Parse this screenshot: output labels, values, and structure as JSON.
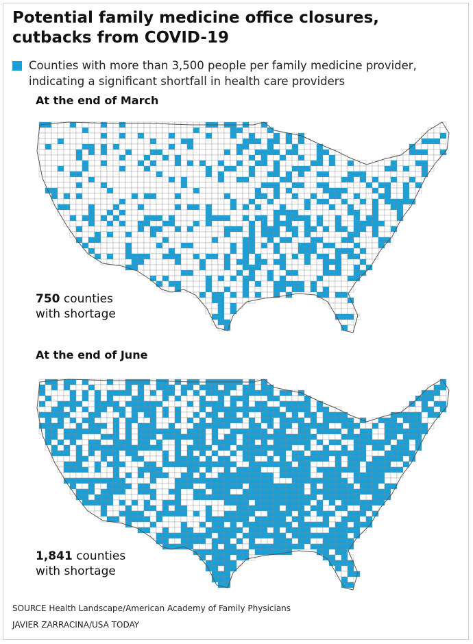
{
  "title_line1": "Potential family medicine office closures,",
  "title_line2": "cutbacks from COVID-19",
  "legend": {
    "color": "#1a9fd6",
    "line1": "Counties with more than 3,500 people per family medicine provider,",
    "line2": "indicating a significant shortfall in health care providers"
  },
  "maps": [
    {
      "heading": "At the end of March",
      "count": "750",
      "count_label_line1": "counties",
      "count_label_line2": "with shortage",
      "shortage_share": 0.24
    },
    {
      "heading": "At the end of June",
      "count": "1,841",
      "count_label_line1": "counties",
      "count_label_line2": "with shortage",
      "shortage_share": 0.59
    }
  ],
  "colors": {
    "shortage": "#1a9fd6",
    "county_fill": "#ffffff",
    "county_border": "#8a8a8a"
  },
  "source": "SOURCE Health Landscape/American Academy of Family Physicians",
  "credit": "JAVIER ZARRACINA/USA TODAY"
}
